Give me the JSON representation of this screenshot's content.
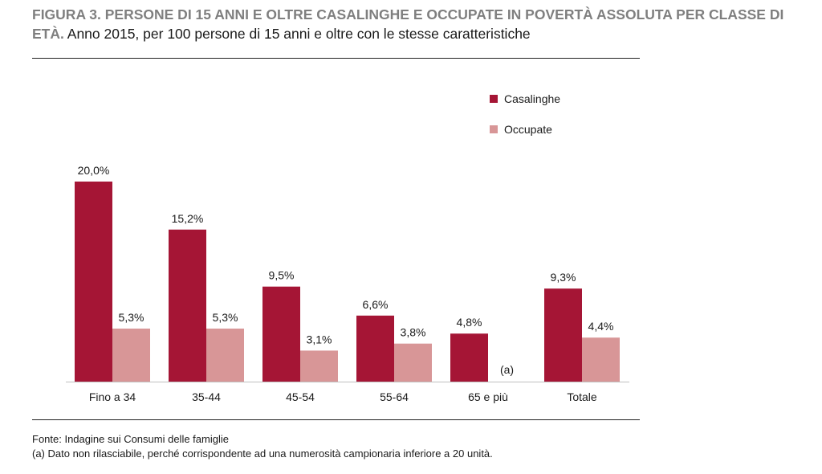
{
  "header": {
    "title_bold": "FIGURA 3. PERSONE DI 15 ANNI E OLTRE CASALINGHE E OCCUPATE IN POVERTÀ ASSOLUTA PER CLASSE DI ETÀ.",
    "title_rest": " Anno 2015, per 100 persone di 15 anni e oltre con le stesse caratteristiche"
  },
  "footer": {
    "source": "Fonte: Indagine sui Consumi delle famiglie",
    "note": "(a) Dato non rilasciabile, perché corrispondente ad una numerosità campionaria inferiore a 20 unità."
  },
  "colors": {
    "casalinghe": "#a51535",
    "occupate": "#d89697"
  },
  "chart_data": {
    "type": "bar",
    "categories": [
      "Fino a 34",
      "35-44",
      "45-54",
      "55-64",
      "65 e più",
      "Totale"
    ],
    "series": [
      {
        "name": "Casalinghe",
        "values": [
          20.0,
          15.2,
          9.5,
          6.6,
          4.8,
          9.3
        ],
        "labels": [
          "20,0%",
          "15,2%",
          "9,5%",
          "6,6%",
          "4,8%",
          "9,3%"
        ]
      },
      {
        "name": "Occupate",
        "values": [
          5.3,
          5.3,
          3.1,
          3.8,
          null,
          4.4
        ],
        "labels": [
          "5,3%",
          "5,3%",
          "3,1%",
          "3,8%",
          "(a)",
          "4,4%"
        ]
      }
    ],
    "ylim": [
      0,
      20
    ],
    "grid": false,
    "legend_position": "top-right"
  }
}
